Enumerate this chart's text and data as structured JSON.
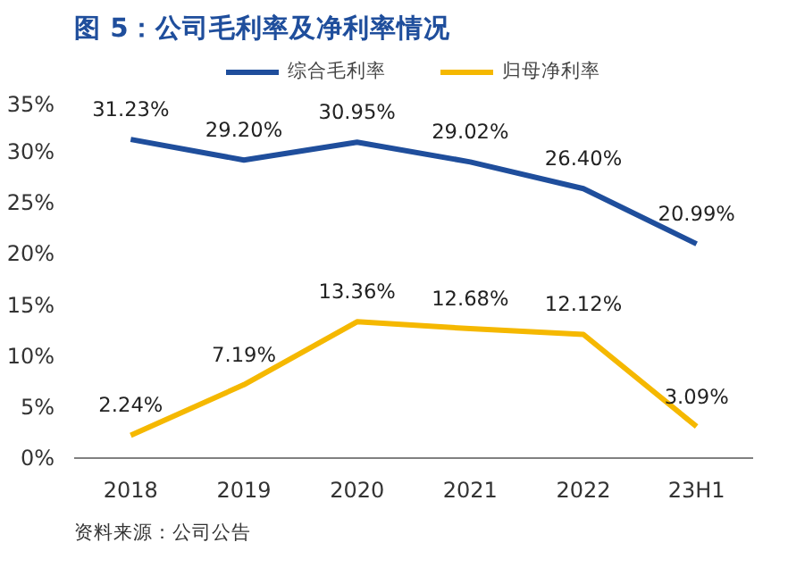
{
  "chart_data": {
    "type": "line",
    "title": "图 5：公司毛利率及净利率情况",
    "categories": [
      "2018",
      "2019",
      "2020",
      "2021",
      "2022",
      "23H1"
    ],
    "series": [
      {
        "name": "综合毛利率",
        "color": "#1f4e9c",
        "values": [
          31.23,
          29.2,
          30.95,
          29.02,
          26.4,
          20.99
        ],
        "value_labels": [
          "31.23%",
          "29.20%",
          "30.95%",
          "29.02%",
          "26.40%",
          "20.99%"
        ]
      },
      {
        "name": "归母净利率",
        "color": "#f5b800",
        "values": [
          2.24,
          7.19,
          13.36,
          12.68,
          12.12,
          3.09
        ],
        "value_labels": [
          "2.24%",
          "7.19%",
          "13.36%",
          "12.68%",
          "12.12%",
          "3.09%"
        ]
      }
    ],
    "ylim": [
      0,
      35
    ],
    "yticks": [
      {
        "value": 0,
        "label": "0%"
      },
      {
        "value": 5,
        "label": "5%"
      },
      {
        "value": 10,
        "label": "10%"
      },
      {
        "value": 15,
        "label": "15%"
      },
      {
        "value": 20,
        "label": "20%"
      },
      {
        "value": 25,
        "label": "25%"
      },
      {
        "value": 30,
        "label": "30%"
      },
      {
        "value": 35,
        "label": "35%"
      }
    ],
    "grid": false,
    "legend": "top",
    "marker": "none",
    "line_style": "solid",
    "annotations": [
      "资料来源：公司公告"
    ]
  }
}
